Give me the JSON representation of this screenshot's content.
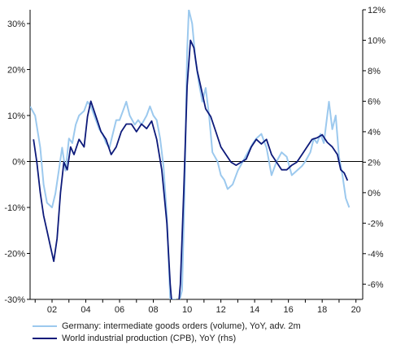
{
  "chart_data": {
    "type": "line",
    "xlabel": "",
    "ylabel_left": "",
    "ylabel_right": "",
    "x_range": [
      2000.7,
      2020.4
    ],
    "x_ticks": [
      2002,
      2004,
      2006,
      2008,
      2010,
      2012,
      2014,
      2016,
      2018,
      2020
    ],
    "x_tick_labels": [
      "02",
      "04",
      "06",
      "08",
      "10",
      "12",
      "14",
      "16",
      "18",
      "20"
    ],
    "y_left": {
      "range": [
        -30,
        33
      ],
      "ticks": [
        30,
        20,
        10,
        0,
        -10,
        -20,
        -30
      ],
      "tick_labels": [
        "30%",
        "20%",
        "10%",
        "0%",
        "-10%",
        "-20%",
        "-30%"
      ]
    },
    "y_right": {
      "range": [
        -7,
        12
      ],
      "ticks": [
        12,
        10,
        8,
        6,
        4,
        2,
        0,
        -2,
        -4,
        -6
      ],
      "tick_labels": [
        "12%",
        "10%",
        "8%",
        "6%",
        "4%",
        "2%",
        "0%",
        "-2%",
        "-4%",
        "-6%"
      ]
    },
    "zero_line": true,
    "grid": false,
    "legend_position": "bottom",
    "series": [
      {
        "name": "Germany: intermediate goods orders (volume), YoY, adv. 2m",
        "axis": "left",
        "color": "#9cc9ee",
        "x": [
          2000.7,
          2001.0,
          2001.3,
          2001.5,
          2001.7,
          2002.0,
          2002.2,
          2002.4,
          2002.6,
          2002.8,
          2003.0,
          2003.2,
          2003.4,
          2003.6,
          2003.9,
          2004.1,
          2004.3,
          2004.5,
          2004.8,
          2005.0,
          2005.2,
          2005.4,
          2005.6,
          2005.8,
          2006.0,
          2006.2,
          2006.4,
          2006.6,
          2006.9,
          2007.1,
          2007.3,
          2007.6,
          2007.8,
          2008.0,
          2008.2,
          2008.4,
          2008.6,
          2008.8,
          2009.0,
          2009.15,
          2009.3,
          2009.5,
          2009.7,
          2009.85,
          2010.0,
          2010.1,
          2010.3,
          2010.5,
          2010.7,
          2010.9,
          2011.1,
          2011.3,
          2011.5,
          2011.8,
          2012.0,
          2012.2,
          2012.4,
          2012.7,
          2013.0,
          2013.3,
          2013.6,
          2013.9,
          2014.1,
          2014.4,
          2014.7,
          2015.0,
          2015.3,
          2015.6,
          2015.9,
          2016.2,
          2016.5,
          2016.8,
          2017.0,
          2017.3,
          2017.5,
          2017.7,
          2017.9,
          2018.1,
          2018.4,
          2018.6,
          2018.8,
          2019.0,
          2019.2,
          2019.4,
          2019.6
        ],
        "y": [
          12,
          10,
          3,
          -5,
          -9,
          -10,
          -7,
          -2,
          3,
          -2,
          5,
          4,
          8,
          10,
          11,
          13,
          12,
          10,
          7,
          6,
          4,
          3,
          6,
          9,
          9,
          11,
          13,
          10,
          8,
          9,
          8,
          10,
          12,
          10,
          9,
          5,
          -1,
          -12,
          -30,
          -30,
          -30,
          -31,
          -28,
          -6,
          24,
          33,
          30,
          22,
          17,
          13,
          16,
          10,
          2,
          0,
          -3,
          -4,
          -6,
          -5,
          -2,
          0,
          2,
          4,
          5,
          6,
          3,
          -3,
          0,
          2,
          1,
          -3,
          -2,
          -1,
          0,
          2,
          5,
          4,
          6,
          4,
          13,
          7,
          10,
          1,
          -3,
          -8,
          -10
        ]
      },
      {
        "name": "World industrial production (CPB), YoY (rhs)",
        "axis": "right",
        "color": "#0d1a7a",
        "x": [
          2000.9,
          2001.1,
          2001.3,
          2001.5,
          2001.7,
          2001.9,
          2002.1,
          2002.3,
          2002.5,
          2002.7,
          2002.9,
          2003.1,
          2003.3,
          2003.6,
          2003.9,
          2004.1,
          2004.3,
          2004.6,
          2004.9,
          2005.2,
          2005.5,
          2005.8,
          2006.1,
          2006.4,
          2006.7,
          2007.0,
          2007.3,
          2007.6,
          2007.9,
          2008.2,
          2008.5,
          2008.8,
          2009.0,
          2009.3,
          2009.6,
          2009.8,
          2010.0,
          2010.2,
          2010.4,
          2010.6,
          2010.8,
          2011.1,
          2011.4,
          2011.7,
          2012.0,
          2012.3,
          2012.6,
          2012.9,
          2013.2,
          2013.5,
          2013.8,
          2014.1,
          2014.4,
          2014.7,
          2015.0,
          2015.3,
          2015.6,
          2015.9,
          2016.2,
          2016.5,
          2016.8,
          2017.1,
          2017.4,
          2017.7,
          2018.0,
          2018.3,
          2018.6,
          2018.9,
          2019.1,
          2019.3,
          2019.5
        ],
        "y": [
          3.5,
          2,
          0,
          -1.5,
          -2.5,
          -3.5,
          -4.5,
          -3,
          0,
          2,
          1.5,
          3,
          2.5,
          3.5,
          3,
          5,
          6,
          5,
          4,
          3.5,
          2.5,
          3,
          4,
          4.5,
          4.5,
          4,
          4.5,
          4.2,
          4.7,
          3.5,
          1.5,
          -2,
          -6,
          -10,
          -6,
          0,
          7,
          10,
          9.5,
          8,
          7,
          5.5,
          5,
          4,
          3,
          2.5,
          2,
          1.8,
          2,
          2.2,
          3,
          3.5,
          3.2,
          3.5,
          2.5,
          2,
          1.5,
          1.5,
          1.8,
          2,
          2.5,
          3,
          3.5,
          3.6,
          3.8,
          3.3,
          3,
          2.5,
          1.5,
          1.3,
          0.8
        ]
      }
    ]
  }
}
